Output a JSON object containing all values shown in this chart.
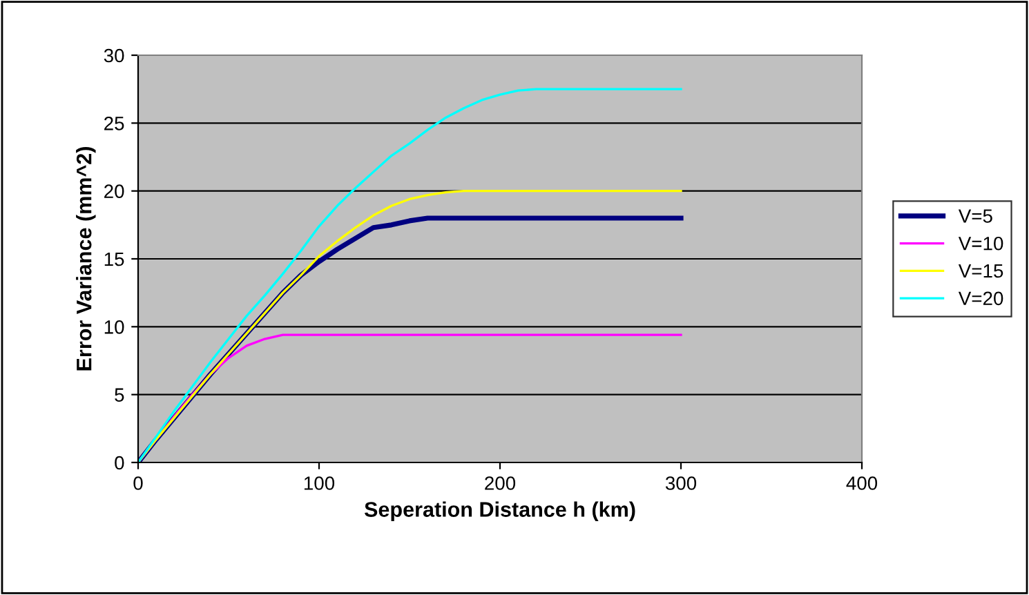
{
  "chart_data": {
    "type": "line",
    "xlabel": "Seperation Distance h (km)",
    "ylabel": "Error Variance (mm^2)",
    "xlim": [
      0,
      400
    ],
    "xticks": [
      0,
      100,
      200,
      300,
      400
    ],
    "ylim": [
      0,
      30
    ],
    "yticks": [
      0,
      5,
      10,
      15,
      20,
      25,
      30
    ],
    "grid": "y",
    "legend": "right",
    "marker": "none",
    "line_style": "solid",
    "series": [
      {
        "name": "V=5",
        "color": "#000080",
        "x": [
          0,
          10,
          20,
          30,
          40,
          50,
          60,
          70,
          80,
          90,
          100,
          110,
          120,
          130,
          140,
          150,
          160,
          300
        ],
        "values": [
          0,
          1.7,
          3.3,
          4.9,
          6.5,
          8.0,
          9.5,
          11.0,
          12.5,
          13.8,
          14.8,
          15.7,
          16.5,
          17.3,
          17.5,
          17.8,
          18,
          18
        ]
      },
      {
        "name": "V=10",
        "color": "#ff00ff",
        "x": [
          0,
          10,
          20,
          30,
          40,
          50,
          60,
          70,
          80,
          300
        ],
        "values": [
          0,
          1.7,
          3.4,
          5.0,
          6.5,
          7.7,
          8.6,
          9.1,
          9.4,
          9.4
        ]
      },
      {
        "name": "V=15",
        "color": "#ffff00",
        "x": [
          0,
          10,
          20,
          30,
          40,
          50,
          60,
          70,
          80,
          90,
          100,
          110,
          120,
          130,
          140,
          150,
          160,
          170,
          180,
          300
        ],
        "values": [
          0,
          1.7,
          3.3,
          4.9,
          6.5,
          8.0,
          9.5,
          11.0,
          12.5,
          13.8,
          15.2,
          16.3,
          17.3,
          18.2,
          18.9,
          19.4,
          19.7,
          19.9,
          20,
          20
        ]
      },
      {
        "name": "V=20",
        "color": "#00ffff",
        "x": [
          0,
          10,
          20,
          30,
          40,
          50,
          60,
          70,
          80,
          90,
          100,
          110,
          120,
          130,
          140,
          150,
          160,
          170,
          180,
          190,
          200,
          210,
          220,
          300
        ],
        "values": [
          0,
          1.9,
          3.8,
          5.6,
          7.4,
          9.1,
          10.8,
          12.3,
          13.9,
          15.6,
          17.4,
          18.9,
          20.2,
          21.4,
          22.6,
          23.5,
          24.5,
          25.4,
          26.1,
          26.7,
          27.1,
          27.4,
          27.5,
          27.5
        ]
      }
    ]
  }
}
